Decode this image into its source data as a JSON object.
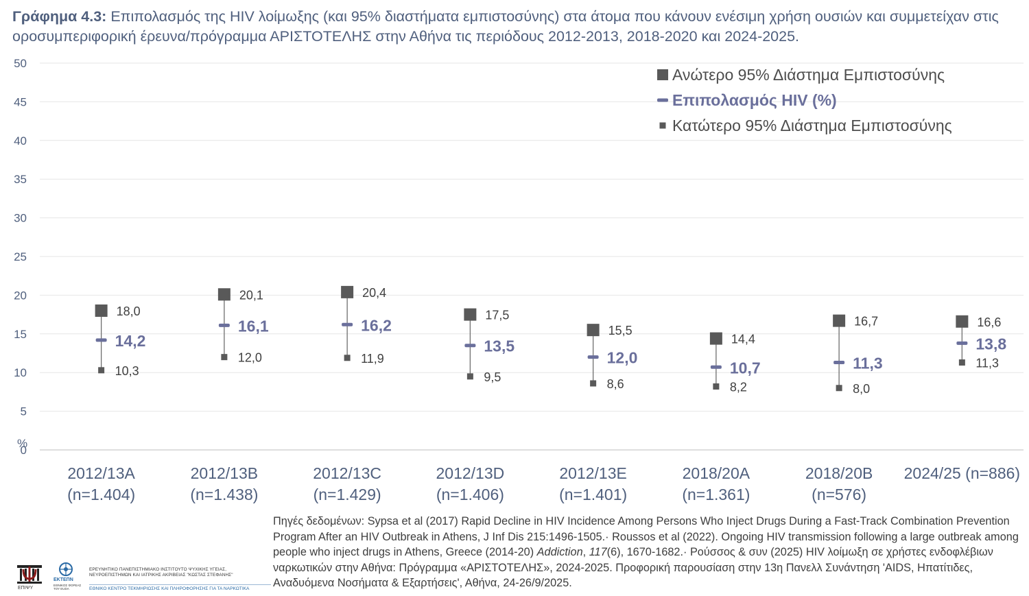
{
  "title": {
    "prefix": "Γράφημα 4.3:",
    "text": " Επιπολασμός της HIV λοίμωξης (και 95% διαστήματα εμπιστοσύνης) στα άτομα που κάνουν ενέσιμη χρήση ουσιών και συμμετείχαν στις οροσυμπεριφορική έρευνα/πρόγραμμα ΑΡΙΣΤΟΤΕΛΗΣ στην Αθήνα τις περιόδους 2012-2013, 2018-2020 και 2024-2025."
  },
  "colors": {
    "bound_marker": "#595959",
    "prevalence": "#6a6f9b",
    "error_bar": "#6e6e6e",
    "grid": "#e6e6e6",
    "axis_text": "#4f5f7d",
    "label_text": "#404040"
  },
  "chart_data": {
    "type": "scatter",
    "categories": [
      [
        "2012/13A",
        "(n=1.404)"
      ],
      [
        "2012/13B",
        "(n=1.438)"
      ],
      [
        "2012/13C",
        "(n=1.429)"
      ],
      [
        "2012/13D",
        "(n=1.406)"
      ],
      [
        "2012/13E",
        "(n=1.401)"
      ],
      [
        "2018/20A",
        "(n=1.361)"
      ],
      [
        "2018/20B",
        "(n=576)"
      ],
      [
        "2024/25 (n=886)"
      ]
    ],
    "series": [
      {
        "name": "Ανώτερο 95% Διάστημα Εμπιστοσύνης",
        "values": [
          18.0,
          20.1,
          20.4,
          17.5,
          15.5,
          14.4,
          16.7,
          16.6
        ],
        "labels": [
          "18,0",
          "20,1",
          "20,4",
          "17,5",
          "15,5",
          "14,4",
          "16,7",
          "16,6"
        ]
      },
      {
        "name": "Επιπολασμός HIV (%)",
        "values": [
          14.2,
          16.1,
          16.2,
          13.5,
          12.0,
          10.7,
          11.3,
          13.8
        ],
        "labels": [
          "14,2",
          "16,1",
          "16,2",
          "13,5",
          "12,0",
          "10,7",
          "11,3",
          "13,8"
        ]
      },
      {
        "name": "Κατώτερο 95% Διάστημα Εμπιστοσύνης",
        "values": [
          10.3,
          12.0,
          11.9,
          9.5,
          8.6,
          8.2,
          8.0,
          11.3
        ],
        "labels": [
          "10,3",
          "12,0",
          "11,9",
          "9,5",
          "8,6",
          "8,2",
          "8,0",
          "11,3"
        ]
      }
    ],
    "ylim": [
      0,
      50
    ],
    "yticks": [
      "0",
      "5",
      "10",
      "15",
      "20",
      "25",
      "30",
      "35",
      "40",
      "45",
      "50"
    ],
    "ylabel": "%",
    "grid": true,
    "legend_position": "top-right"
  },
  "sources": {
    "line1": "Πηγές δεδομένων: Sypsa et al (2017) Rapid Decline in HIV Incidence Among Persons Who Inject Drugs During a Fast-Track Combination Prevention Program After an HIV Outbreak in Athens, J Inf Dis 215:1496-1505.· Roussos et al (2022). Ongoing HIV transmission following a large outbreak among people who inject drugs in Athens, Greece (2014-20) ",
    "journal": "Addiction",
    "sep": ", ",
    "volume": "117",
    "line2": "(6), 1670-1682.· Ρούσσος & συν (2025) HIV λοίμωξη σε χρήστες ενδοφλέβιων ναρκωτικών στην Αθήνα: Πρόγραμμα «ΑΡΙΣΤΟΤΕΛΗΣ», 2024-2025. Προφορική παρουσίαση στην 13η Πανελλ Συνάντηση 'AIDS, Ηπατίτιδες, Αναδυόμενα Νοσήματα & Εξαρτήσεις', Αθήνα, 24-26/9/2025."
  },
  "logos": {
    "psi_label": "ΕΠΙΨΥ",
    "ektepn_label": "ΕΚΤΕΠΝ",
    "ektepn_sub": "ΕΘΝΙΚΟΣ ΦΟΡΕΑΣ ΤΟΥ EUDA",
    "institute": "ΕΡΕΥΝΗΤΙΚΟ ΠΑΝΕΠΙΣΤΗΜΙΑΚΟ ΙΝΣΤΙΤΟΥΤΟ ΨΥΧΙΚΗΣ ΥΓΕΙΑΣ, ΝΕΥΡΟΕΠΙΣΤΗΜΩΝ ΚΑΙ ΙΑΤΡΙΚΗΣ ΑΚΡΙΒΕΙΑΣ \"ΚΩΣΤΑΣ ΣΤΕΦΑΝΗΣ\"",
    "center": "ΕΘΝΙΚΟ ΚΕΝΤΡΟ ΤΕΚΜΗΡΙΩΣΗΣ ΚΑΙ ΠΛΗΡΟΦΟΡΗΣΗΣ ΓΙΑ ΤΑ ΝΑΡΚΩΤΙΚΑ"
  }
}
